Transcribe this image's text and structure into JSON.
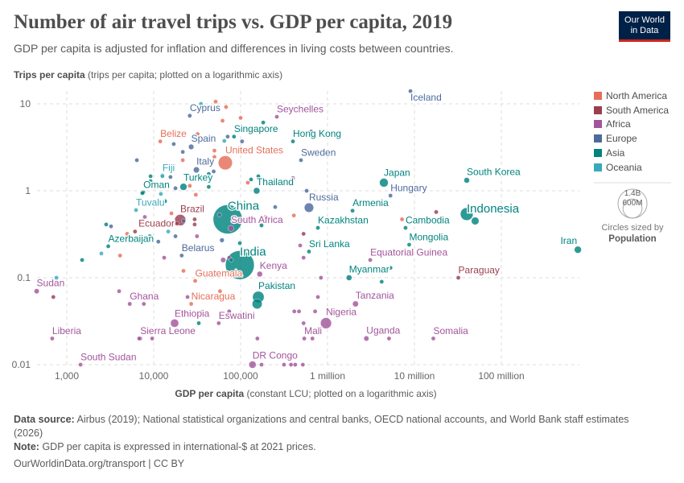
{
  "title": "Number of air travel trips vs. GDP per capita, 2019",
  "subtitle": "GDP per capita is adjusted for inflation and differences in living costs between countries.",
  "logo": {
    "line1": "Our World",
    "line2": "in Data"
  },
  "footer": {
    "source_label": "Data source:",
    "source_text": "Airbus (2019); National statistical organizations and central banks, OECD national accounts, and World Bank staff estimates (2026)",
    "note_label": "Note:",
    "note_text": "GDP per capita is expressed in international-$ at 2021 prices.",
    "link": "OurWorldinData.org/transport | CC BY"
  },
  "size_legend": {
    "big": "1.4B",
    "small": "600M",
    "caption": "Circles sized by",
    "variable": "Population"
  },
  "chart_data": {
    "type": "scatter",
    "title": "Number of air travel trips vs. GDP per capita, 2019",
    "xlabel_bold": "GDP per capita",
    "xlabel_rest": " (constant LCU; plotted on a logarithmic axis)",
    "ylabel_bold": "Trips per capita",
    "ylabel_rest": " (trips per capita; plotted on a logarithmic axis)",
    "x_scale": "log",
    "y_scale": "log",
    "xlim": [
      400,
      800000000
    ],
    "ylim": [
      0.01,
      15
    ],
    "x_ticks": [
      {
        "v": 1000,
        "label": "1,000"
      },
      {
        "v": 10000,
        "label": "10,000"
      },
      {
        "v": 100000,
        "label": "100,000"
      },
      {
        "v": 1000000,
        "label": "1 million"
      },
      {
        "v": 10000000,
        "label": "10 million"
      },
      {
        "v": 100000000,
        "label": "100 million"
      }
    ],
    "y_ticks": [
      {
        "v": 10,
        "label": "10"
      },
      {
        "v": 1,
        "label": "1"
      },
      {
        "v": 0.1,
        "label": "0.1"
      },
      {
        "v": 0.01,
        "label": "0.01"
      }
    ],
    "grid": true,
    "legend_placement": "right",
    "regions": [
      {
        "name": "North America",
        "color": "#E56E5A"
      },
      {
        "name": "South America",
        "color": "#9A3F4F"
      },
      {
        "name": "Africa",
        "color": "#A2559C"
      },
      {
        "name": "Europe",
        "color": "#4C6A9C"
      },
      {
        "name": "Asia",
        "color": "#00847E"
      },
      {
        "name": "Oceania",
        "color": "#38AABA"
      }
    ],
    "point_fields": [
      "country",
      "region",
      "gdp_per_capita",
      "trips_per_capita",
      "population_millions"
    ],
    "points": [
      [
        "Iceland",
        "Europe",
        9000000,
        14,
        0.36
      ],
      [
        "Cyprus",
        "Europe",
        26000,
        7.3,
        1.2
      ],
      [
        "Seychelles",
        "Africa",
        261000,
        7.1,
        0.1
      ],
      [
        "Belize",
        "North America",
        11900,
        3.7,
        0.4
      ],
      [
        "Spain",
        "Europe",
        27000,
        3.2,
        47
      ],
      [
        "Singapore",
        "Asia",
        84000,
        4.2,
        5.7
      ],
      [
        "Hong Kong",
        "Asia",
        400000,
        3.7,
        7.5
      ],
      [
        "United States",
        "North America",
        66700,
        2.1,
        330
      ],
      [
        "Sweden",
        "Europe",
        495000,
        2.25,
        10
      ],
      [
        "Italy",
        "Europe",
        31000,
        1.74,
        60
      ],
      [
        "Fiji",
        "Oceania",
        12600,
        1.5,
        0.9
      ],
      [
        "Turkey",
        "Asia",
        22000,
        1.11,
        83
      ],
      [
        "Oman",
        "Asia",
        7600,
        0.96,
        4.6
      ],
      [
        "Thailand",
        "Asia",
        153000,
        1.0,
        70
      ],
      [
        "Japan",
        "Asia",
        4450000,
        1.24,
        126
      ],
      [
        "South Korea",
        "Asia",
        40000000,
        1.32,
        52
      ],
      [
        "Hungary",
        "Europe",
        5300000,
        0.88,
        9.8
      ],
      [
        "Tuvalu",
        "Oceania",
        6260,
        0.6,
        0.01
      ],
      [
        "China",
        "Asia",
        71000,
        0.47,
        1410
      ],
      [
        "Russia",
        "Europe",
        612000,
        0.64,
        145
      ],
      [
        "Armenia",
        "Asia",
        1940000,
        0.59,
        3
      ],
      [
        "Indonesia",
        "Asia",
        40000000,
        0.54,
        270
      ],
      [
        "Brazil",
        "South America",
        20200,
        0.46,
        211
      ],
      [
        "South Africa",
        "Africa",
        77400,
        0.37,
        59
      ],
      [
        "Ecuador",
        "South America",
        18500,
        0.42,
        17
      ],
      [
        "Kazakhstan",
        "Asia",
        775000,
        0.375,
        18.5
      ],
      [
        "Cambodia",
        "Asia",
        7900000,
        0.375,
        16.5
      ],
      [
        "Mongolia",
        "Asia",
        8700000,
        0.24,
        3.2
      ],
      [
        "Azerbaijan",
        "Asia",
        3000,
        0.23,
        10
      ],
      [
        "India",
        "Asia",
        98000,
        0.14,
        1380
      ],
      [
        "Sri Lanka",
        "Asia",
        612000,
        0.2,
        21.8
      ],
      [
        "Belarus",
        "Europe",
        21000,
        0.18,
        9.4
      ],
      [
        "Equatorial Guinea",
        "Africa",
        3100000,
        0.16,
        1.4
      ],
      [
        "Kenya",
        "Africa",
        166000,
        0.11,
        52
      ],
      [
        "Guatemala",
        "North America",
        30000,
        0.092,
        17
      ],
      [
        "Myanmar",
        "Asia",
        1770000,
        0.1,
        54
      ],
      [
        "Paraguay",
        "South America",
        32000000,
        0.1,
        7
      ],
      [
        "Sudan",
        "Africa",
        450,
        0.07,
        43
      ],
      [
        "Pakistan",
        "Asia",
        160000,
        0.06,
        220
      ],
      [
        "Ghana",
        "Africa",
        5300,
        0.05,
        31
      ],
      [
        "Nicaragua",
        "North America",
        27000,
        0.05,
        6.6
      ],
      [
        "Tanzania",
        "Africa",
        2100000,
        0.05,
        58
      ],
      [
        "Ethiopia",
        "Africa",
        17400,
        0.03,
        112
      ],
      [
        "Eswatini",
        "Africa",
        56000,
        0.03,
        1.1
      ],
      [
        "Nigeria",
        "Africa",
        960000,
        0.03,
        200
      ],
      [
        "Liberia",
        "Africa",
        680,
        0.02,
        5
      ],
      [
        "Sierra Leone",
        "Africa",
        7000,
        0.02,
        8
      ],
      [
        "Mali",
        "Africa",
        540000,
        0.02,
        20
      ],
      [
        "Uganda",
        "Africa",
        2800000,
        0.02,
        44
      ],
      [
        "Somalia",
        "Africa",
        16500000,
        0.02,
        16
      ],
      [
        "South Sudan",
        "Africa",
        1440,
        0.01,
        11
      ],
      [
        "DR Congo",
        "Africa",
        137000,
        0.01,
        87
      ],
      [
        "Iran",
        "Asia",
        760000000,
        0.21,
        83
      ],
      [
        "",
        "Oceania",
        35000,
        10,
        1
      ],
      [
        "",
        "North America",
        51600,
        10.6,
        1
      ],
      [
        "",
        "North America",
        68000,
        9.2,
        1
      ],
      [
        "",
        "North America",
        100000,
        6.9,
        1
      ],
      [
        "",
        "North America",
        62000,
        6.4,
        1
      ],
      [
        "",
        "Asia",
        182000,
        6.1,
        1
      ],
      [
        "",
        "North America",
        32000,
        4.5,
        1
      ],
      [
        "",
        "Oceania",
        65000,
        3.75,
        1
      ],
      [
        "",
        "Europe",
        71000,
        4.2,
        2
      ],
      [
        "",
        "Europe",
        104000,
        3.7,
        2
      ],
      [
        "",
        "Europe",
        17000,
        3.45,
        2
      ],
      [
        "",
        "Europe",
        650000,
        4.8,
        5
      ],
      [
        "",
        "North America",
        50000,
        2.9,
        2
      ],
      [
        "",
        "Europe",
        21600,
        2.8,
        2
      ],
      [
        "",
        "North America",
        21600,
        2.25,
        1
      ],
      [
        "",
        "North America",
        50000,
        2.45,
        1
      ],
      [
        "",
        "Europe",
        6400,
        2.25,
        3
      ],
      [
        "",
        "Asia",
        9200,
        1.47,
        2
      ],
      [
        "",
        "Asia",
        9200,
        1.29,
        2
      ],
      [
        "",
        "Oceania",
        12600,
        1.47,
        1
      ],
      [
        "",
        "Europe",
        15600,
        1.44,
        2
      ],
      [
        "",
        "Asia",
        43000,
        1.56,
        25
      ],
      [
        "",
        "Europe",
        49000,
        1.67,
        10
      ],
      [
        "",
        "Asia",
        43000,
        1.11,
        3
      ],
      [
        "",
        "North America",
        26000,
        1.14,
        1
      ],
      [
        "",
        "Europe",
        17800,
        1.07,
        5
      ],
      [
        "",
        "Asia",
        132000,
        1.35,
        10
      ],
      [
        "",
        "Asia",
        160000,
        1.47,
        4
      ],
      [
        "",
        "North America",
        121000,
        1.24,
        3
      ],
      [
        "",
        "Africa",
        400000,
        1.4,
        1
      ],
      [
        "",
        "Asia",
        7400,
        0.94,
        4
      ],
      [
        "",
        "Oceania",
        12100,
        0.92,
        1
      ],
      [
        "",
        "North America",
        30500,
        0.9,
        1
      ],
      [
        "",
        "Europe",
        575000,
        1.0,
        5
      ],
      [
        "",
        "Europe",
        250000,
        0.65,
        5
      ],
      [
        "",
        "Asia",
        13500,
        0.76,
        3
      ],
      [
        "",
        "Africa",
        7900,
        0.5,
        3
      ],
      [
        "",
        "North America",
        16000,
        0.55,
        1
      ],
      [
        "",
        "South America",
        29600,
        0.47,
        3
      ],
      [
        "",
        "South America",
        29600,
        0.41,
        3
      ],
      [
        "",
        "Europe",
        22000,
        0.45,
        6
      ],
      [
        "",
        "Asia",
        2840,
        0.41,
        3
      ],
      [
        "",
        "Europe",
        3230,
        0.39,
        3
      ],
      [
        "",
        "North America",
        4950,
        0.32,
        2
      ],
      [
        "",
        "South America",
        6100,
        0.34,
        3
      ],
      [
        "",
        "Asia",
        9000,
        0.3,
        3
      ],
      [
        "",
        "Europe",
        11300,
        0.26,
        3
      ],
      [
        "",
        "Europe",
        17800,
        0.3,
        4
      ],
      [
        "",
        "Africa",
        31500,
        0.3,
        8
      ],
      [
        "",
        "Oceania",
        14700,
        0.34,
        1
      ],
      [
        "",
        "Europe",
        57000,
        0.53,
        4
      ],
      [
        "",
        "North America",
        410000,
        0.52,
        2
      ],
      [
        "",
        "South America",
        530000,
        0.32,
        3
      ],
      [
        "",
        "Asia",
        174000,
        0.4,
        30
      ],
      [
        "",
        "North America",
        194000,
        0.5,
        10
      ],
      [
        "",
        "Europe",
        61000,
        0.27,
        35
      ],
      [
        "",
        "Asia",
        98000,
        0.25,
        4
      ],
      [
        "",
        "Africa",
        485000,
        0.235,
        3
      ],
      [
        "",
        "Africa",
        530000,
        0.17,
        3
      ],
      [
        "",
        "Asia",
        1500,
        0.16,
        3
      ],
      [
        "",
        "Oceania",
        2500,
        0.19,
        3
      ],
      [
        "",
        "North America",
        4100,
        0.18,
        3
      ],
      [
        "",
        "Africa",
        13200,
        0.17,
        4
      ],
      [
        "",
        "North America",
        22000,
        0.12,
        3
      ],
      [
        "",
        "Africa",
        63000,
        0.16,
        45
      ],
      [
        "",
        "Africa",
        74000,
        0.17,
        5
      ],
      [
        "",
        "Asia",
        78000,
        0.16,
        5
      ],
      [
        "",
        "Africa",
        186000,
        0.19,
        20
      ],
      [
        "",
        "Oceania",
        760,
        0.1,
        1
      ],
      [
        "",
        "South America",
        700,
        0.06,
        8
      ],
      [
        "",
        "Africa",
        4000,
        0.07,
        3
      ],
      [
        "",
        "Africa",
        7700,
        0.05,
        5
      ],
      [
        "",
        "Africa",
        24500,
        0.06,
        3
      ],
      [
        "",
        "North America",
        58000,
        0.07,
        3
      ],
      [
        "",
        "Africa",
        840000,
        0.1,
        3
      ],
      [
        "",
        "Africa",
        775000,
        0.06,
        12
      ],
      [
        "",
        "Asia",
        33000,
        0.03,
        7
      ],
      [
        "",
        "Asia",
        36600,
        0.041,
        3
      ],
      [
        "",
        "Africa",
        74000,
        0.041,
        3
      ],
      [
        "",
        "Africa",
        415000,
        0.041,
        5
      ],
      [
        "",
        "Africa",
        470000,
        0.041,
        15
      ],
      [
        "",
        "Africa",
        720000,
        0.041,
        5
      ],
      [
        "",
        "Africa",
        530000,
        0.03,
        5
      ],
      [
        "",
        "Africa",
        6800,
        0.02,
        5
      ],
      [
        "",
        "Africa",
        9600,
        0.02,
        5
      ],
      [
        "",
        "Africa",
        156000,
        0.02,
        5
      ],
      [
        "",
        "Africa",
        670000,
        0.02,
        5
      ],
      [
        "",
        "Africa",
        174000,
        0.01,
        3
      ],
      [
        "",
        "Africa",
        316000,
        0.01,
        3
      ],
      [
        "",
        "Africa",
        380000,
        0.01,
        3
      ],
      [
        "",
        "Africa",
        425000,
        0.01,
        3
      ],
      [
        "",
        "Africa",
        520000,
        0.01,
        3
      ],
      [
        "",
        "Asia",
        5300000,
        0.13,
        3
      ],
      [
        "",
        "Asia",
        4200000,
        0.09,
        20
      ],
      [
        "",
        "Africa",
        5100000,
        0.02,
        5
      ],
      [
        "",
        "South America",
        17800000,
        0.57,
        30
      ],
      [
        "",
        "North America",
        7200000,
        0.47,
        3
      ],
      [
        "",
        "Asia",
        50000000,
        0.45,
        97
      ],
      [
        "",
        "Asia",
        155000,
        0.05,
        165
      ]
    ]
  }
}
